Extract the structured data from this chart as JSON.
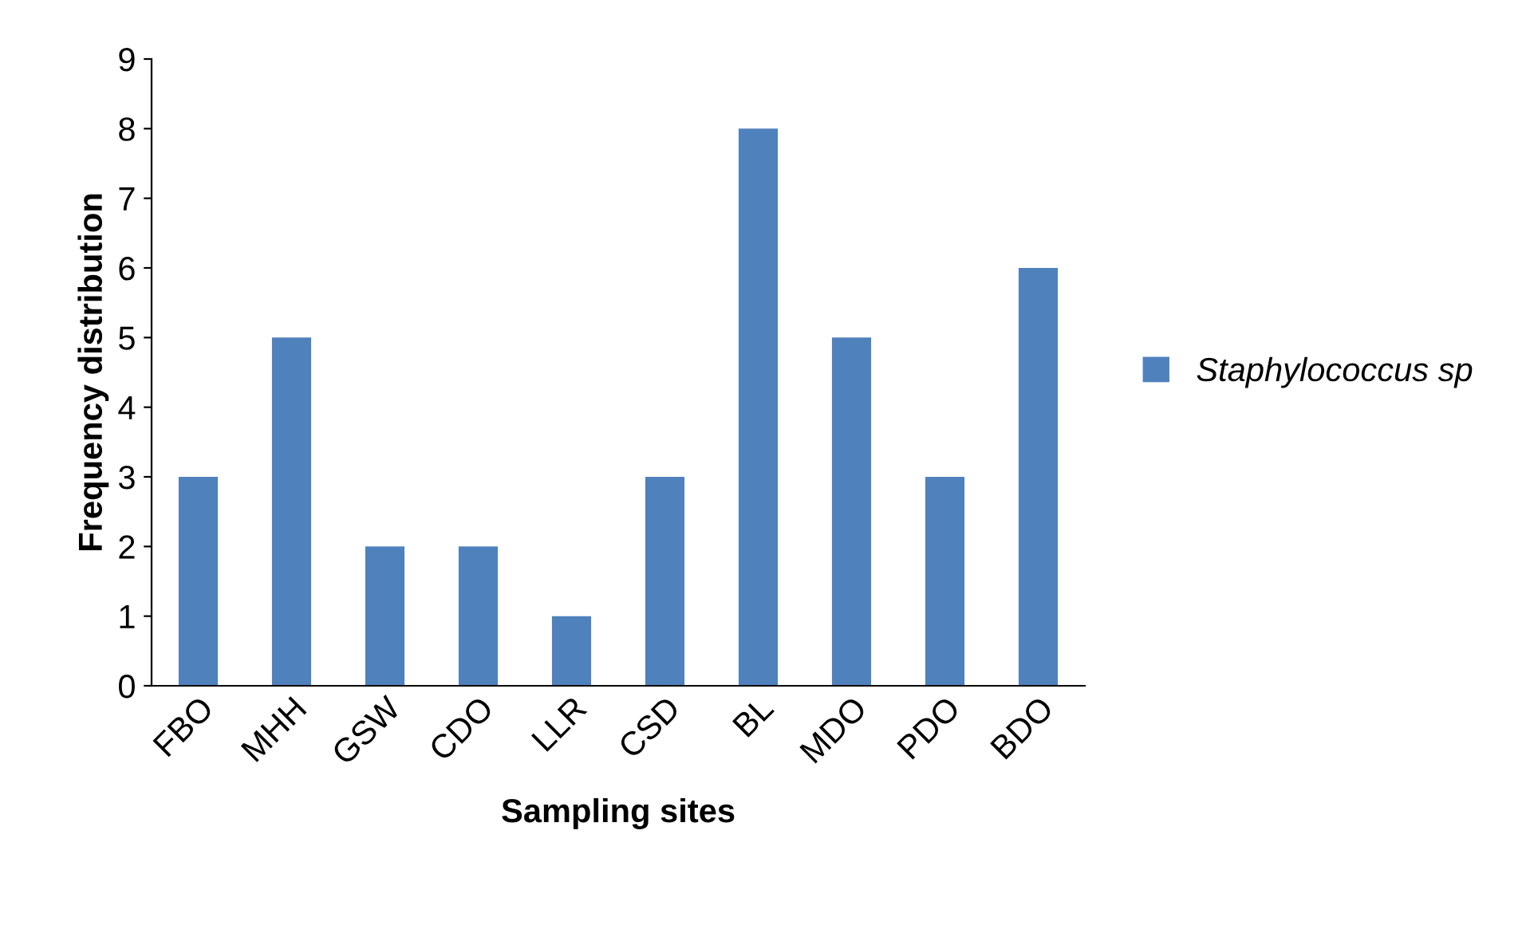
{
  "chart_data": {
    "type": "bar",
    "xlabel": "Sampling sites",
    "ylabel": "Frequency distribution",
    "categories": [
      "FBO",
      "MHH",
      "GSW",
      "CDO",
      "LLR",
      "CSD",
      "BL",
      "MDO",
      "PDO",
      "BDO"
    ],
    "series": [
      {
        "name": "Staphylococcus sp",
        "color": "#4f81bd",
        "values": [
          3,
          5,
          2,
          2,
          1,
          3,
          8,
          5,
          3,
          6
        ]
      }
    ],
    "ylim": [
      0,
      9
    ],
    "yticks": [
      0,
      1,
      2,
      3,
      4,
      5,
      6,
      7,
      8,
      9
    ],
    "grid": false,
    "legend": "right"
  }
}
